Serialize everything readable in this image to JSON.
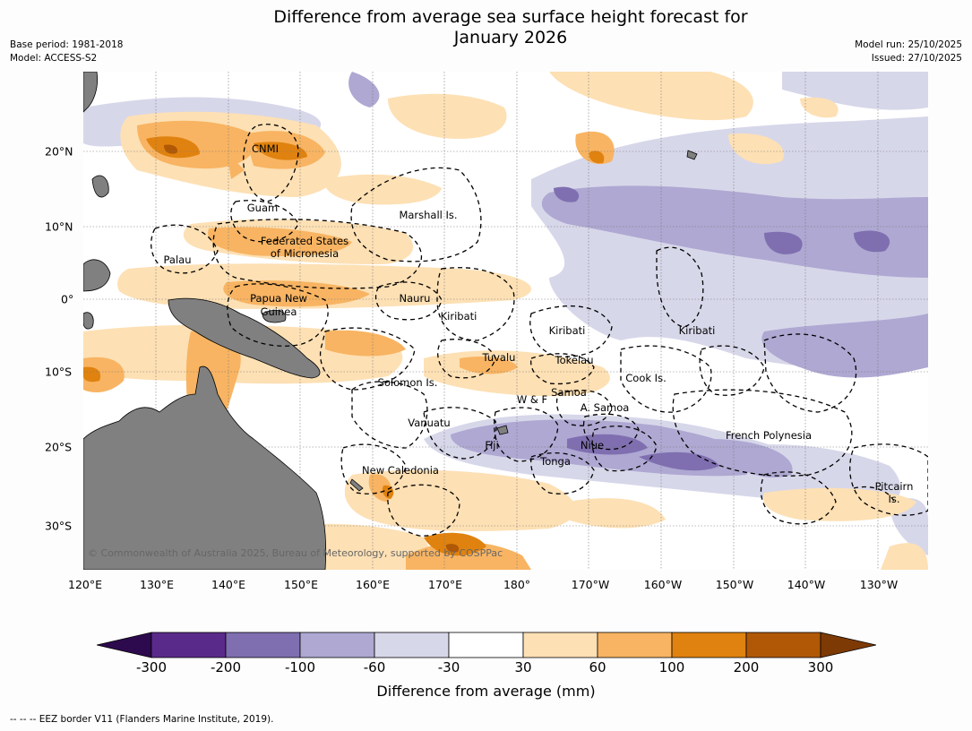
{
  "title_line1": "Difference from average sea surface height forecast for",
  "title_line2": "January 2026",
  "meta_left": {
    "line1": "Base period: 1981-2018",
    "line2": "Model: ACCESS-S2"
  },
  "meta_right": {
    "line1": "Model run: 25/10/2025",
    "line2": "Issued: 27/10/2025"
  },
  "lon_labels": [
    "120°E",
    "130°E",
    "140°E",
    "150°E",
    "160°E",
    "170°E",
    "180°",
    "170°W",
    "160°W",
    "150°W",
    "140°W",
    "130°W"
  ],
  "lat_labels": [
    "20°N",
    "10°N",
    "0°",
    "10°S",
    "20°S",
    "30°S"
  ],
  "places": [
    "CNMI",
    "Guam",
    "Marshall Is.",
    "Federated States",
    "of Micronesia",
    "Palau",
    "Papua New",
    "Guinea",
    "Nauru",
    "Kiribati",
    "Kiribati",
    "Kiribati",
    "Tuvalu",
    "Tokelau",
    "Solomon Is.",
    "Cook Is.",
    "W & F",
    "Samoa",
    "A. Samoa",
    "Vanuatu",
    "Fiji",
    "Niue",
    "French Polynesia",
    "Tonga",
    "New Caledonia",
    "Pitcairn",
    "Is."
  ],
  "copyright": "© Commonwealth of Australia 2025, Bureau of Meteorology, supported by COSPPac",
  "colorbar": {
    "ticks": [
      "-300",
      "-200",
      "-100",
      "-60",
      "-30",
      "30",
      "60",
      "100",
      "200",
      "300"
    ],
    "colors": [
      "#2d0a4e",
      "#5a2a8a",
      "#7f6fb0",
      "#aea8d2",
      "#d7d7ea",
      "#ffffff",
      "#fde0b4",
      "#f8b462",
      "#e0820f",
      "#b05806",
      "#7e3a05"
    ],
    "label": "Difference from average (mm)"
  },
  "footer": "--  --  -- EEZ border V11 (Flanders Marine Institute, 2019).",
  "chart_data": {
    "type": "heatmap",
    "title": "Difference from average sea surface height forecast for January 2026",
    "variable": "Sea surface height difference from average (mm)",
    "levels": [
      -300,
      -200,
      -100,
      -60,
      -30,
      30,
      60,
      100,
      200,
      300
    ],
    "lon_range": [
      "120°E",
      "125°W"
    ],
    "lat_range": [
      "35°S",
      "30°N"
    ]
  }
}
